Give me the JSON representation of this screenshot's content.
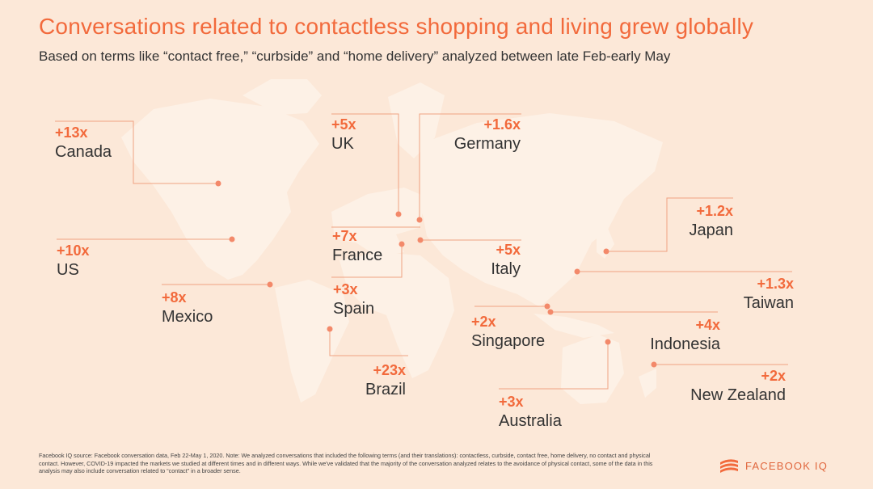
{
  "title": "Conversations related to contactless shopping and living grew globally",
  "subtitle": "Based on terms like “contact free,” “curbside” and “home delivery” analyzed between late Feb-early May",
  "colors": {
    "accent": "#f26a3c",
    "background": "#fce8d8",
    "land": "#fdf1e6",
    "leader": "#f0a282",
    "text": "#333333"
  },
  "countries": [
    {
      "id": "canada",
      "name": "Canada",
      "value": "+13x"
    },
    {
      "id": "us",
      "name": "US",
      "value": "+10x"
    },
    {
      "id": "mexico",
      "name": "Mexico",
      "value": "+8x"
    },
    {
      "id": "uk",
      "name": "UK",
      "value": "+5x"
    },
    {
      "id": "germany",
      "name": "Germany",
      "value": "+1.6x"
    },
    {
      "id": "france",
      "name": "France",
      "value": "+7x"
    },
    {
      "id": "italy",
      "name": "Italy",
      "value": "+5x"
    },
    {
      "id": "spain",
      "name": "Spain",
      "value": "+3x"
    },
    {
      "id": "brazil",
      "name": "Brazil",
      "value": "+23x"
    },
    {
      "id": "japan",
      "name": "Japan",
      "value": "+1.2x"
    },
    {
      "id": "taiwan",
      "name": "Taiwan",
      "value": "+1.3x"
    },
    {
      "id": "indonesia",
      "name": "Indonesia",
      "value": "+4x"
    },
    {
      "id": "singapore",
      "name": "Singapore",
      "value": "+2x"
    },
    {
      "id": "new-zealand",
      "name": "New Zealand",
      "value": "+2x"
    },
    {
      "id": "australia",
      "name": "Australia",
      "value": "+3x"
    }
  ],
  "footnote": "Facebook IQ source: Facebook conversation data, Feb 22-May 1, 2020. Note: We analyzed conversations that included the following terms (and their translations): contactless, curbside, contact free, home delivery, no contact and physical contact. However, COVID-19 impacted the markets we studied at different times and in different ways. While we've validated that the majority of the conversation analyzed relates to the avoidance of physical contact, some of the data in this analysis may also include conversation related to “contact” in a broader sense.",
  "brand": {
    "name": "FACEBOOK IQ",
    "icon": "facebook-iq-logo-icon"
  }
}
